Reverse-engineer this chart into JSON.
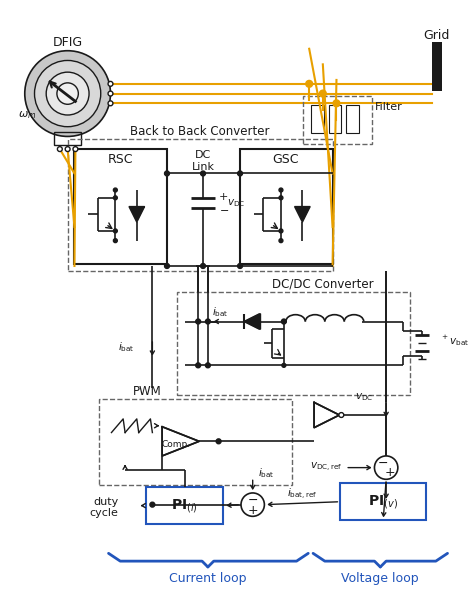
{
  "fig_width": 4.74,
  "fig_height": 6.06,
  "dpi": 100,
  "bg_color": "#ffffff",
  "line_color": "#1a1a1a",
  "orange_color": "#E8A000",
  "blue_color": "#2255BB",
  "dashed_color": "#666666",
  "labels": {
    "DFIG": "DFIG",
    "omega_m": "$\\omega_m$",
    "Grid": "Grid",
    "Filter": "Filter",
    "BackToBack": "Back to Back Converter",
    "RSC": "RSC",
    "DCLink": "DC\nLink",
    "GSC": "GSC",
    "vDC_cap": "$v_{\\mathrm{DC}}$",
    "DCDC": "DC/DC Converter",
    "ibat_top": "$i_{\\mathrm{bat}}$",
    "ibat_left": "$i_{\\mathrm{bat}}$",
    "vbat": "$^+v_{\\mathrm{bat}}$",
    "PWM": "PWM",
    "Comp": "Comp.",
    "duty_cycle": "duty\ncycle",
    "vDC_tri": "$v_{\\mathrm{DC}}$",
    "vDCref": "$v_{\\mathrm{DC,ref}}$",
    "ibat_ref": "$i_{\\mathrm{bat,ref}}$",
    "ibat_ctrl": "$i_{\\mathrm{bat}}$",
    "PI_i": "$\\mathbf{PI}_{(i)}$",
    "PI_v": "$\\mathbf{PI}_{(v)}$",
    "Current_loop": "Current loop",
    "Voltage_loop": "Voltage loop"
  }
}
